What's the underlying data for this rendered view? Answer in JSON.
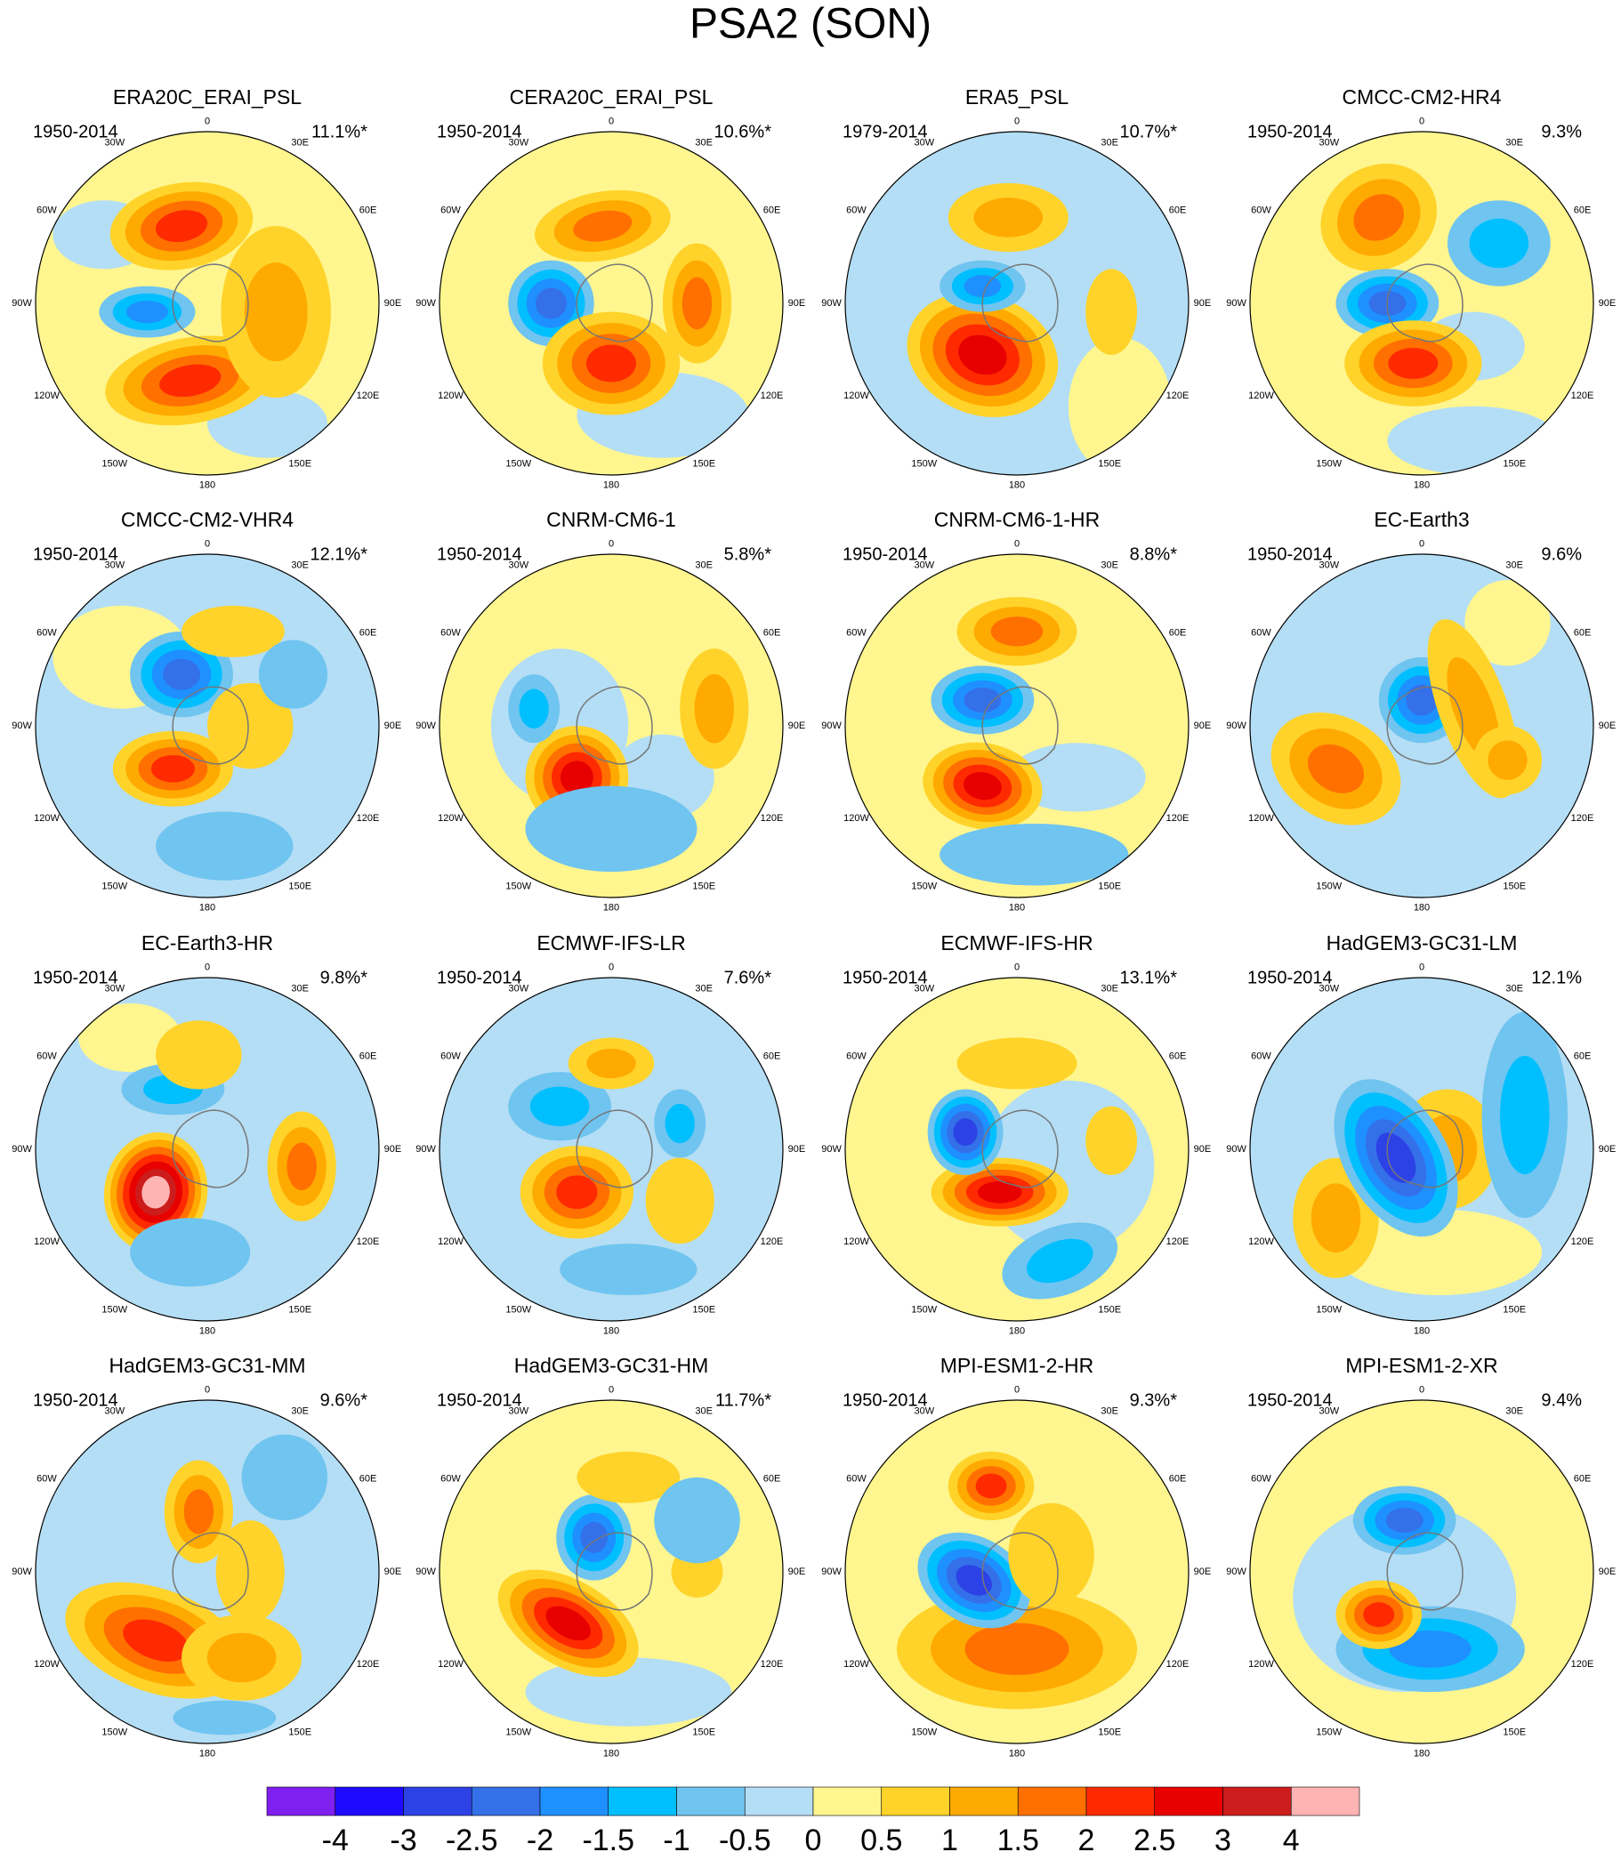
{
  "title": "PSA2 (SON)",
  "longitudes": [
    "0",
    "30E",
    "60E",
    "90E",
    "120E",
    "150E",
    "180",
    "150W",
    "120W",
    "90W",
    "60W",
    "30W"
  ],
  "panels": [
    {
      "title": "ERA20C_ERAI_PSL",
      "period": "1950-2014",
      "variance": "11.1%*"
    },
    {
      "title": "CERA20C_ERAI_PSL",
      "period": "1950-2014",
      "variance": "10.6%*"
    },
    {
      "title": "ERA5_PSL",
      "period": "1979-2014",
      "variance": "10.7%*"
    },
    {
      "title": "CMCC-CM2-HR4",
      "period": "1950-2014",
      "variance": "9.3%"
    },
    {
      "title": "CMCC-CM2-VHR4",
      "period": "1950-2014",
      "variance": "12.1%*"
    },
    {
      "title": "CNRM-CM6-1",
      "period": "1950-2014",
      "variance": "5.8%*"
    },
    {
      "title": "CNRM-CM6-1-HR",
      "period": "1950-2014",
      "variance": "8.8%*"
    },
    {
      "title": "EC-Earth3",
      "period": "1950-2014",
      "variance": "9.6%"
    },
    {
      "title": "EC-Earth3-HR",
      "period": "1950-2014",
      "variance": "9.8%*"
    },
    {
      "title": "ECMWF-IFS-LR",
      "period": "1950-2014",
      "variance": "7.6%*"
    },
    {
      "title": "ECMWF-IFS-HR",
      "period": "1950-2014",
      "variance": "13.1%*"
    },
    {
      "title": "HadGEM3-GC31-LM",
      "period": "1950-2014",
      "variance": "12.1%"
    },
    {
      "title": "HadGEM3-GC31-MM",
      "period": "1950-2014",
      "variance": "9.6%*"
    },
    {
      "title": "HadGEM3-GC31-HM",
      "period": "1950-2014",
      "variance": "11.7%*"
    },
    {
      "title": "MPI-ESM1-2-HR",
      "period": "1950-2014",
      "variance": "9.3%*"
    },
    {
      "title": "MPI-ESM1-2-XR",
      "period": "1950-2014",
      "variance": "9.4%"
    }
  ],
  "colorbar": {
    "ticks": [
      -4,
      -3,
      -2.5,
      -2,
      -1.5,
      -1,
      -0.5,
      0,
      0.5,
      1,
      1.5,
      2,
      2.5,
      3,
      4
    ],
    "colors": [
      "#7f1ff0",
      "#1e0aff",
      "#2c42e6",
      "#3470e8",
      "#1e90ff",
      "#00bfff",
      "#70c4f0",
      "#b4def5",
      "#fff68f",
      "#ffd32a",
      "#ffaa00",
      "#ff7000",
      "#ff2a00",
      "#e80000",
      "#cc1c1c",
      "#ffb4b4"
    ]
  }
}
